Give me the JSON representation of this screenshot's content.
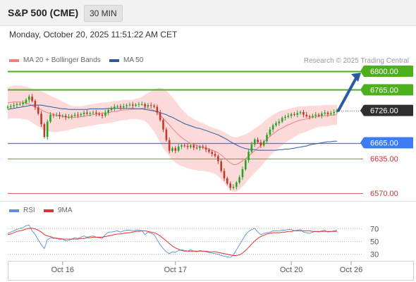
{
  "header": {
    "symbol": "S&P 500 (CME)",
    "timeframe": "30 MIN"
  },
  "datetime": "Monday, October 20, 2025 11:51:22 AM CET",
  "credit": "Research © 2025 Trading Central",
  "colors": {
    "up_candle": "#27a327",
    "down_candle": "#c0392b",
    "bollinger_fill": "#fbd3d3",
    "ma20": "#f08080",
    "ma50": "#2c5aa0",
    "resistance": "#4caf1c",
    "pivot": "#3d7cf5",
    "support": "#e45a5a",
    "arrow": "#2c5aa0",
    "rsi": "#5b8fdc",
    "rsi_ma": "#e03030"
  },
  "chart_data": [
    {
      "type": "candlestick",
      "legend": [
        "MA 20 + Bollinger Bands",
        "MA 50"
      ],
      "x_ticks": [
        "Oct 16",
        "Oct 17",
        "Oct 20",
        "Oct 26"
      ],
      "ylim": [
        6562,
        6808
      ],
      "current_price": 6726,
      "levels": [
        {
          "label": "6800.00",
          "value": 6800,
          "kind": "resistance"
        },
        {
          "label": "6765.00",
          "value": 6765,
          "kind": "resistance"
        },
        {
          "label": "6726.00",
          "value": 6726,
          "kind": "current"
        },
        {
          "label": "6665.00",
          "value": 6665,
          "kind": "pivot"
        },
        {
          "label": "6635.00",
          "value": 6635,
          "kind": "support"
        },
        {
          "label": "6570.00",
          "value": 6570,
          "kind": "support"
        }
      ],
      "target_arrow": {
        "from": 6726,
        "to": 6800
      },
      "closes": [
        6733,
        6734,
        6736,
        6738,
        6738,
        6740,
        6746,
        6752,
        6744,
        6732,
        6720,
        6700,
        6676,
        6705,
        6718,
        6717,
        6718,
        6715,
        6716,
        6713,
        6714,
        6716,
        6718,
        6717,
        6719,
        6722,
        6720,
        6721,
        6722,
        6720,
        6718,
        6716,
        6722,
        6727,
        6730,
        6733,
        6734,
        6732,
        6734,
        6736,
        6737,
        6735,
        6737,
        6738,
        6738,
        6733,
        6736,
        6735,
        6733,
        6722,
        6708,
        6690,
        6670,
        6650,
        6655,
        6650,
        6658,
        6660,
        6659,
        6657,
        6660,
        6656,
        6655,
        6658,
        6656,
        6652,
        6648,
        6644,
        6640,
        6630,
        6612,
        6598,
        6588,
        6580,
        6582,
        6590,
        6600,
        6615,
        6632,
        6648,
        6662,
        6671,
        6666,
        6660,
        6668,
        6680,
        6690,
        6698,
        6702,
        6705,
        6712,
        6714,
        6716,
        6719,
        6718,
        6721,
        6723,
        6718,
        6715,
        6714,
        6716,
        6718,
        6716,
        6720,
        6722,
        6719,
        6721,
        6723,
        6726
      ],
      "series": [
        {
          "name": "MA 20",
          "values": [
            6740,
            6741,
            6742,
            6742,
            6742,
            6741,
            6740,
            6738,
            6735,
            6732,
            6730,
            6727,
            6724,
            6722,
            6720,
            6718,
            6717,
            6716,
            6715,
            6714,
            6713,
            6713,
            6713,
            6714,
            6714,
            6715,
            6716,
            6717,
            6718,
            6719,
            6720,
            6721,
            6721,
            6722,
            6723,
            6724,
            6725,
            6726,
            6727,
            6727,
            6728,
            6728,
            6729,
            6729,
            6730,
            6731,
            6730,
            6728,
            6726,
            6722,
            6717,
            6711,
            6705,
            6699,
            6692,
            6686,
            6680,
            6675,
            6671,
            6667,
            6664,
            6662,
            6660,
            6658,
            6657,
            6655,
            6653,
            6651,
            6649,
            6646,
            6642,
            6637,
            6632,
            6627,
            6624,
            6624,
            6627,
            6631,
            6635,
            6640,
            6645,
            6650,
            6655,
            6660,
            6666,
            6672,
            6677,
            6682,
            6686,
            6690,
            6693,
            6696,
            6699,
            6701,
            6704,
            6706,
            6708,
            6709,
            6710,
            6712,
            6713,
            6714,
            6715,
            6716,
            6716,
            6717,
            6717,
            6718,
            6718
          ]
        },
        {
          "name": "MA 50",
          "values": [
            6728,
            6729,
            6730,
            6731,
            6732,
            6733,
            6734,
            6735,
            6736,
            6736,
            6736,
            6736,
            6735,
            6734,
            6733,
            6732,
            6731,
            6730,
            6729,
            6729,
            6728,
            6728,
            6728,
            6728,
            6728,
            6728,
            6728,
            6729,
            6729,
            6729,
            6729,
            6729,
            6729,
            6730,
            6730,
            6730,
            6730,
            6730,
            6730,
            6730,
            6730,
            6730,
            6729,
            6729,
            6729,
            6728,
            6727,
            6726,
            6725,
            6724,
            6722,
            6720,
            6718,
            6715,
            6713,
            6710,
            6707,
            6704,
            6701,
            6699,
            6697,
            6695,
            6693,
            6692,
            6690,
            6688,
            6686,
            6684,
            6682,
            6680,
            6677,
            6674,
            6671,
            6667,
            6664,
            6661,
            6658,
            6656,
            6654,
            6653,
            6652,
            6652,
            6651,
            6651,
            6651,
            6651,
            6651,
            6651,
            6651,
            6652,
            6652,
            6653,
            6653,
            6654,
            6655,
            6656,
            6657,
            6658,
            6659,
            6661,
            6662,
            6663,
            6664,
            6665,
            6666,
            6667,
            6667,
            6668,
            6668
          ]
        }
      ],
      "bollinger_halfwidth": [
        30,
        30,
        31,
        31,
        31,
        31,
        31,
        31,
        32,
        33,
        34,
        35,
        36,
        35,
        34,
        33,
        32,
        30,
        28,
        26,
        24,
        22,
        21,
        20,
        20,
        20,
        20,
        20,
        20,
        20,
        20,
        20,
        20,
        20,
        20,
        20,
        19,
        19,
        19,
        19,
        18,
        18,
        19,
        20,
        22,
        25,
        29,
        34,
        40,
        46,
        52,
        56,
        58,
        59,
        59,
        58,
        56,
        54,
        52,
        50,
        49,
        48,
        47,
        46,
        45,
        44,
        43,
        43,
        43,
        44,
        46,
        48,
        50,
        51,
        52,
        51,
        50,
        48,
        46,
        44,
        43,
        42,
        41,
        40,
        39,
        38,
        37,
        36,
        35,
        34,
        33,
        31,
        30,
        29,
        28,
        27,
        26,
        25,
        24,
        23,
        22,
        21,
        20,
        20,
        20,
        20,
        19,
        19,
        19
      ]
    },
    {
      "type": "line",
      "legend": [
        "RSI",
        "9MA"
      ],
      "y_ticks": [
        70,
        50,
        30
      ],
      "ylim": [
        22,
        82
      ],
      "series": [
        {
          "name": "RSI",
          "values": [
            62,
            64,
            66,
            68,
            70,
            71,
            74,
            75,
            66,
            60,
            52,
            44,
            38,
            52,
            55,
            54,
            55,
            52,
            53,
            50,
            51,
            53,
            55,
            54,
            56,
            58,
            56,
            57,
            58,
            56,
            55,
            54,
            60,
            64,
            64,
            65,
            66,
            64,
            66,
            67,
            67,
            66,
            67,
            67,
            66,
            60,
            64,
            62,
            60,
            52,
            44,
            38,
            33,
            30,
            33,
            32,
            35,
            36,
            35,
            34,
            36,
            34,
            33,
            35,
            34,
            33,
            32,
            31,
            30,
            29,
            27,
            26,
            25,
            24,
            28,
            36,
            44,
            52,
            60,
            65,
            68,
            70,
            64,
            60,
            62,
            63,
            64,
            66,
            66,
            66,
            67,
            67,
            68,
            68,
            66,
            67,
            68,
            64,
            63,
            62,
            64,
            65,
            64,
            66,
            67,
            64,
            65,
            66,
            67
          ]
        },
        {
          "name": "9MA",
          "values": [
            60,
            61,
            63,
            65,
            66,
            67,
            69,
            70,
            70,
            69,
            67,
            64,
            60,
            58,
            57,
            55,
            54,
            54,
            53,
            53,
            53,
            53,
            53,
            53,
            54,
            54,
            55,
            55,
            56,
            56,
            56,
            56,
            57,
            58,
            59,
            60,
            61,
            61,
            62,
            63,
            63,
            64,
            65,
            65,
            66,
            66,
            65,
            64,
            63,
            61,
            58,
            54,
            50,
            46,
            42,
            39,
            37,
            35,
            34,
            34,
            34,
            34,
            34,
            34,
            34,
            34,
            33,
            33,
            33,
            32,
            31,
            30,
            29,
            28,
            27,
            27,
            28,
            31,
            35,
            40,
            45,
            50,
            54,
            57,
            59,
            61,
            62,
            63,
            63,
            63,
            64,
            64,
            65,
            65,
            66,
            66,
            66,
            66,
            66,
            66,
            65,
            65,
            65,
            65,
            65,
            65,
            65,
            65,
            65
          ]
        }
      ]
    }
  ]
}
